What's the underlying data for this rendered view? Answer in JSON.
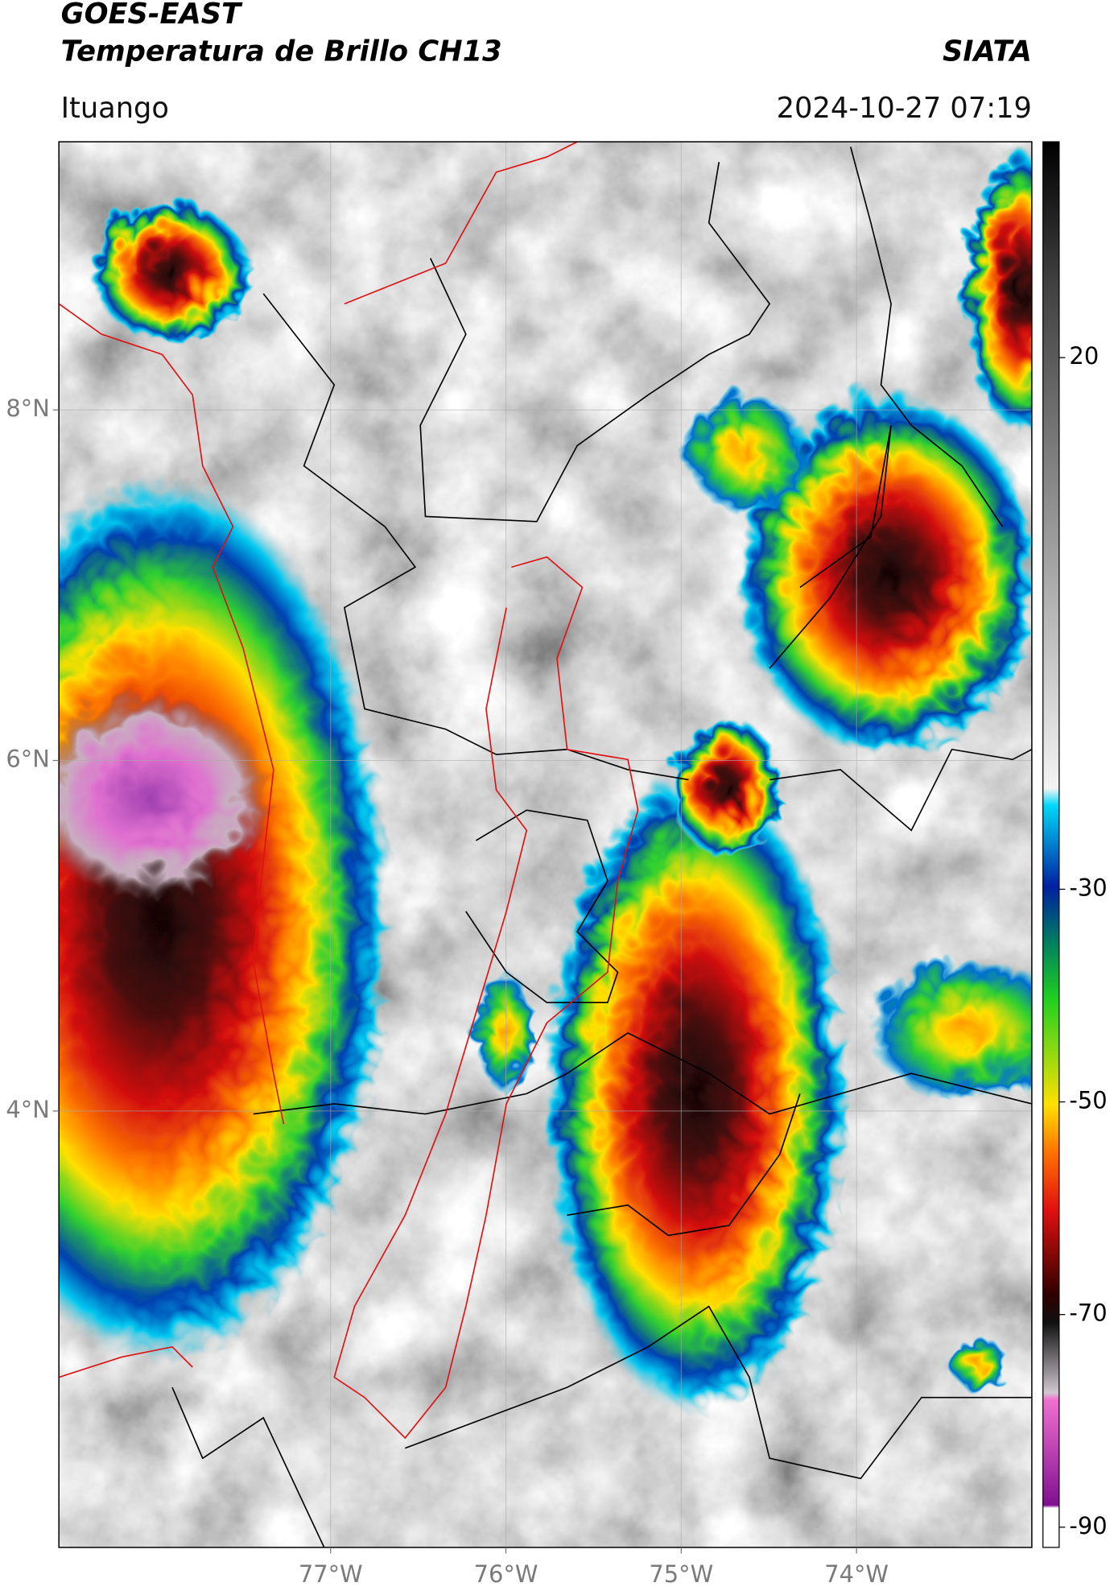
{
  "header": {
    "title": "GOES-EAST",
    "subtitle": "Temperatura de Brillo CH13",
    "agency": "SIATA",
    "location": "Ituango",
    "datetime": "2024-10-27 07:19"
  },
  "map": {
    "xlim": [
      -78.55,
      -73.0
    ],
    "ylim": [
      1.51,
      9.53
    ],
    "xticks": [
      {
        "value": -77,
        "label": "77°W"
      },
      {
        "value": -76,
        "label": "76°W"
      },
      {
        "value": -75,
        "label": "75°W"
      },
      {
        "value": -74,
        "label": "74°W"
      }
    ],
    "yticks": [
      {
        "value": 8,
        "label": "8°N"
      },
      {
        "value": 6,
        "label": "6°N"
      },
      {
        "value": 4,
        "label": "4°N"
      }
    ]
  },
  "colorbar": {
    "ylim": [
      -91.9,
      40.3
    ],
    "yticks": [
      20,
      -30,
      -50,
      -70,
      -90
    ]
  }
}
